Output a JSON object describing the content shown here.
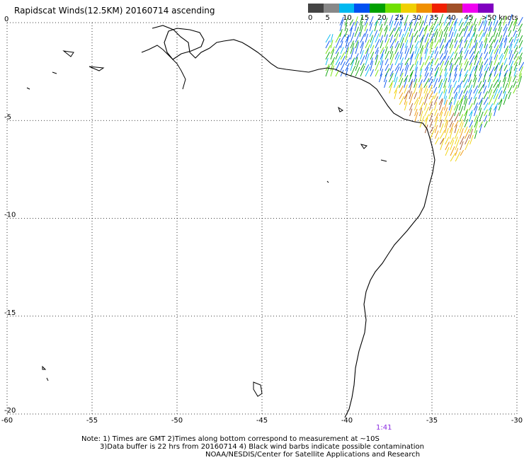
{
  "title": "Rapidscat Winds(12.5KM) 20160714 ascending",
  "legend": {
    "labels": [
      "0",
      "5",
      "10",
      "15",
      "20",
      "25",
      "30",
      "35",
      "40",
      "45",
      ">50 knots"
    ],
    "colors": [
      "#444444",
      "#888888",
      "#00b8f0",
      "#0050f0",
      "#00a000",
      "#70e000",
      "#f0d000",
      "#f09000",
      "#f02000",
      "#a05028",
      "#f000f0",
      "#8000c0"
    ]
  },
  "map": {
    "lon_range": [
      -60,
      -30
    ],
    "lat_range": [
      0,
      -20
    ],
    "lon_ticks": [
      "-60",
      "-55",
      "-50",
      "-45",
      "-40",
      "-35",
      "-30"
    ],
    "lat_ticks": [
      "0",
      "-5",
      "-10",
      "-15",
      "-20"
    ],
    "grid": "dotted",
    "coastline_color": "#000000"
  },
  "pass_time": "1:41",
  "notes": {
    "line1": "Note: 1) Times are GMT 2)Times along bottom correspond to measurement at ~10S",
    "line2": "3)Data buffer is 22 hrs from 20160714 4) Black wind barbs indicate possible contamination",
    "line3": "NOAA/NESDIS/Center for Satellite Applications and Research"
  }
}
